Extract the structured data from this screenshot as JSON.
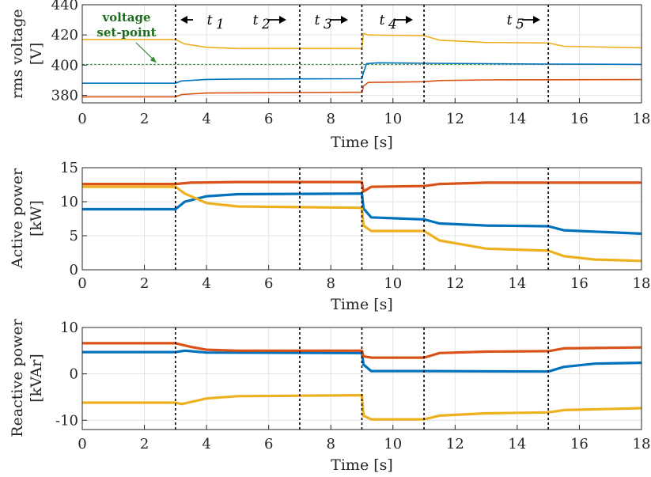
{
  "colors": {
    "blue": "#0072BD",
    "orange": "#D95319",
    "yellow": "#EDB120",
    "setpoint": "#2e8b2e",
    "grid": "#e3e3e3",
    "axis": "#262626"
  },
  "annotations": {
    "setpoint_line1": "voltage",
    "setpoint_line2": "set-point",
    "intervals": [
      {
        "label": "t",
        "sub": "1"
      },
      {
        "label": "t",
        "sub": "2"
      },
      {
        "label": "t",
        "sub": "3"
      },
      {
        "label": "t",
        "sub": "4"
      },
      {
        "label": "t",
        "sub": "5"
      }
    ]
  },
  "chart_data": [
    {
      "type": "line",
      "ylabel_line1": "rms voltage",
      "ylabel_line2": "[V]",
      "xlabel": "Time [s]",
      "xlim": [
        0,
        18
      ],
      "ylim": [
        375,
        440
      ],
      "xticks": [
        "0",
        "2",
        "4",
        "6",
        "8",
        "10",
        "12",
        "14",
        "16",
        "18"
      ],
      "yticks": [
        "380",
        "400",
        "420",
        "440"
      ],
      "ytick_values": [
        380,
        400,
        420,
        440
      ],
      "event_times": [
        3,
        7,
        9,
        11,
        15
      ],
      "setpoint": 400.5,
      "series": [
        {
          "name": "blue",
          "points": [
            [
              0,
              388
            ],
            [
              3,
              388
            ],
            [
              3.2,
              389.5
            ],
            [
              4,
              390.5
            ],
            [
              5,
              390.8
            ],
            [
              9,
              391
            ],
            [
              9.05,
              395
            ],
            [
              9.15,
              401
            ],
            [
              9.5,
              401.5
            ],
            [
              11,
              401.2
            ],
            [
              15,
              400.7
            ],
            [
              18,
              400.5
            ]
          ]
        },
        {
          "name": "orange",
          "points": [
            [
              0,
              379
            ],
            [
              3,
              379
            ],
            [
              3.2,
              380.5
            ],
            [
              4,
              381.5
            ],
            [
              9,
              382
            ],
            [
              9.05,
              386
            ],
            [
              9.2,
              388.5
            ],
            [
              11,
              389
            ],
            [
              11.5,
              389.8
            ],
            [
              13,
              390.2
            ],
            [
              18,
              390.4
            ]
          ]
        },
        {
          "name": "yellow",
          "points": [
            [
              0,
              417
            ],
            [
              3,
              417
            ],
            [
              3.3,
              414
            ],
            [
              4,
              411.8
            ],
            [
              5,
              411
            ],
            [
              9,
              411
            ],
            [
              9.05,
              421
            ],
            [
              9.2,
              420
            ],
            [
              11,
              419.5
            ],
            [
              11.5,
              416.5
            ],
            [
              13,
              415
            ],
            [
              15,
              414.7
            ],
            [
              15.5,
              412.5
            ],
            [
              18,
              411.5
            ]
          ]
        }
      ]
    },
    {
      "type": "line",
      "ylabel_line1": "Active power",
      "ylabel_line2": "[kW]",
      "xlabel": "Time [s]",
      "xlim": [
        0,
        18
      ],
      "ylim": [
        0,
        15
      ],
      "xticks": [
        "0",
        "2",
        "4",
        "6",
        "8",
        "10",
        "12",
        "14",
        "16",
        "18"
      ],
      "yticks": [
        "0",
        "5",
        "10",
        "15"
      ],
      "ytick_values": [
        0,
        5,
        10,
        15
      ],
      "event_times": [
        3,
        7,
        9,
        11,
        15
      ],
      "series": [
        {
          "name": "blue",
          "points": [
            [
              0,
              8.9
            ],
            [
              3,
              8.9
            ],
            [
              3.3,
              10
            ],
            [
              4,
              10.8
            ],
            [
              5,
              11.1
            ],
            [
              9,
              11.2
            ],
            [
              9.05,
              9
            ],
            [
              9.3,
              7.7
            ],
            [
              11,
              7.4
            ],
            [
              11.5,
              6.8
            ],
            [
              13,
              6.5
            ],
            [
              15,
              6.4
            ],
            [
              15.5,
              5.8
            ],
            [
              18,
              5.3
            ]
          ]
        },
        {
          "name": "orange",
          "points": [
            [
              0,
              12.6
            ],
            [
              3,
              12.6
            ],
            [
              3.5,
              12.8
            ],
            [
              5,
              12.9
            ],
            [
              9,
              12.9
            ],
            [
              9.05,
              11.5
            ],
            [
              9.3,
              12.2
            ],
            [
              11,
              12.3
            ],
            [
              11.5,
              12.6
            ],
            [
              13,
              12.8
            ],
            [
              18,
              12.8
            ]
          ]
        },
        {
          "name": "yellow",
          "points": [
            [
              0,
              12.2
            ],
            [
              3,
              12.2
            ],
            [
              3.3,
              11.2
            ],
            [
              4,
              9.8
            ],
            [
              5,
              9.3
            ],
            [
              9,
              9.1
            ],
            [
              9.05,
              6.5
            ],
            [
              9.3,
              5.7
            ],
            [
              11,
              5.7
            ],
            [
              11.5,
              4.3
            ],
            [
              13,
              3.1
            ],
            [
              15,
              2.8
            ],
            [
              15.5,
              2
            ],
            [
              16.5,
              1.5
            ],
            [
              18,
              1.3
            ]
          ]
        }
      ]
    },
    {
      "type": "line",
      "ylabel_line1": "Reactive power",
      "ylabel_line2": "[kVAr]",
      "xlabel": "Time [s]",
      "xlim": [
        0,
        18
      ],
      "ylim": [
        -12,
        10
      ],
      "xticks": [
        "0",
        "2",
        "4",
        "6",
        "8",
        "10",
        "12",
        "14",
        "16",
        "18"
      ],
      "yticks": [
        "-10",
        "0",
        "10"
      ],
      "ytick_values": [
        -10,
        0,
        10
      ],
      "event_times": [
        3,
        7,
        9,
        11,
        15
      ],
      "series": [
        {
          "name": "blue",
          "points": [
            [
              0,
              4.7
            ],
            [
              3,
              4.7
            ],
            [
              3.3,
              5
            ],
            [
              4,
              4.6
            ],
            [
              9,
              4.5
            ],
            [
              9.05,
              2
            ],
            [
              9.3,
              0.6
            ],
            [
              11,
              0.6
            ],
            [
              15,
              0.5
            ],
            [
              15.5,
              1.5
            ],
            [
              16.5,
              2.2
            ],
            [
              18,
              2.4
            ]
          ]
        },
        {
          "name": "orange",
          "points": [
            [
              0,
              6.6
            ],
            [
              3,
              6.6
            ],
            [
              3.5,
              5.8
            ],
            [
              4,
              5.2
            ],
            [
              5,
              5
            ],
            [
              9,
              5
            ],
            [
              9.05,
              3.8
            ],
            [
              9.3,
              3.5
            ],
            [
              11,
              3.5
            ],
            [
              11.5,
              4.5
            ],
            [
              13,
              4.8
            ],
            [
              15,
              4.9
            ],
            [
              15.5,
              5.5
            ],
            [
              18,
              5.7
            ]
          ]
        },
        {
          "name": "yellow",
          "points": [
            [
              0,
              -6.2
            ],
            [
              3,
              -6.2
            ],
            [
              3.2,
              -6.5
            ],
            [
              4,
              -5.3
            ],
            [
              5,
              -4.8
            ],
            [
              9,
              -4.6
            ],
            [
              9.05,
              -9
            ],
            [
              9.3,
              -9.8
            ],
            [
              11,
              -9.8
            ],
            [
              11.5,
              -9
            ],
            [
              13,
              -8.5
            ],
            [
              15,
              -8.3
            ],
            [
              15.5,
              -7.8
            ],
            [
              18,
              -7.4
            ]
          ]
        }
      ]
    }
  ]
}
